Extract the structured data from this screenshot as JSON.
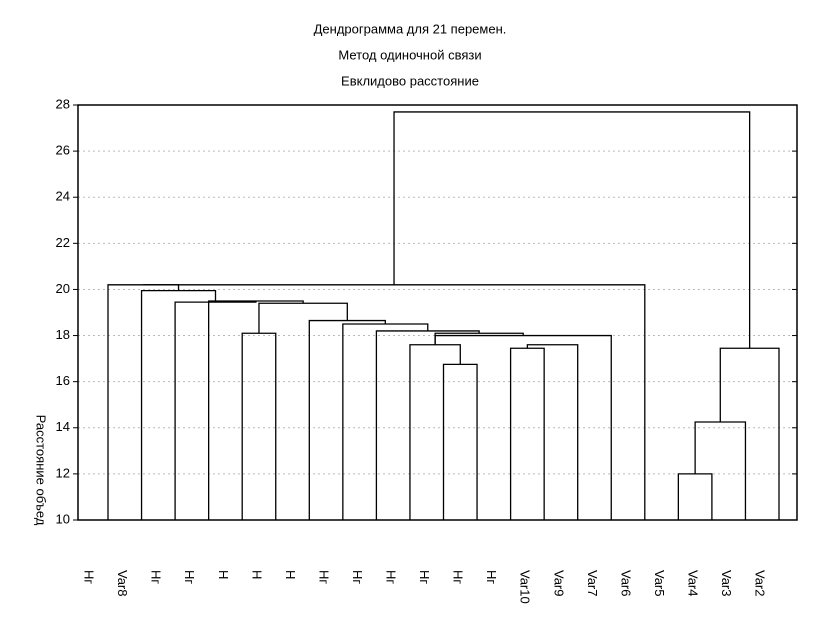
{
  "chart_data": {
    "type": "dendrogram",
    "title": "Дендрограмма для 21  перемен.",
    "subtitle": [
      "Метод одиночной связи",
      "Евклидово расстояние"
    ],
    "ylabel": "Расстояние объед",
    "leaves": [
      "Нг",
      "Var8",
      "Нг",
      "Нг",
      "Н",
      "Н",
      "Н",
      "Нг",
      "Нг",
      "Нг",
      "Нг",
      "Нг",
      "Нг",
      "Var10",
      "Var9",
      "Var7",
      "Var6",
      "Var5",
      "Var4",
      "Var3",
      "Var2"
    ],
    "merges": [
      [
        10,
        11,
        16.75
      ],
      [
        12,
        13,
        17.45
      ],
      [
        9,
        21,
        17.6
      ],
      [
        22,
        14,
        17.6
      ],
      [
        23,
        15,
        18.0
      ],
      [
        23,
        25,
        18.1
      ],
      [
        8,
        26,
        18.2
      ],
      [
        7,
        27,
        18.5
      ],
      [
        6,
        28,
        18.65
      ],
      [
        4,
        5,
        18.1
      ],
      [
        30,
        29,
        19.4
      ],
      [
        3,
        31,
        19.5
      ],
      [
        2,
        32,
        19.45
      ],
      [
        1,
        33,
        19.95
      ],
      [
        0,
        34,
        20.2
      ],
      [
        35,
        16,
        20.2
      ],
      [
        17,
        18,
        12
      ],
      [
        37,
        19,
        14.25
      ],
      [
        38,
        20,
        17.45
      ],
      [
        36,
        39,
        27.7
      ]
    ],
    "ylim": [
      10,
      28
    ],
    "yticks": [
      10,
      12,
      14,
      16,
      18,
      20,
      22,
      24,
      26,
      28
    ],
    "grid": true,
    "color": "#000000"
  }
}
